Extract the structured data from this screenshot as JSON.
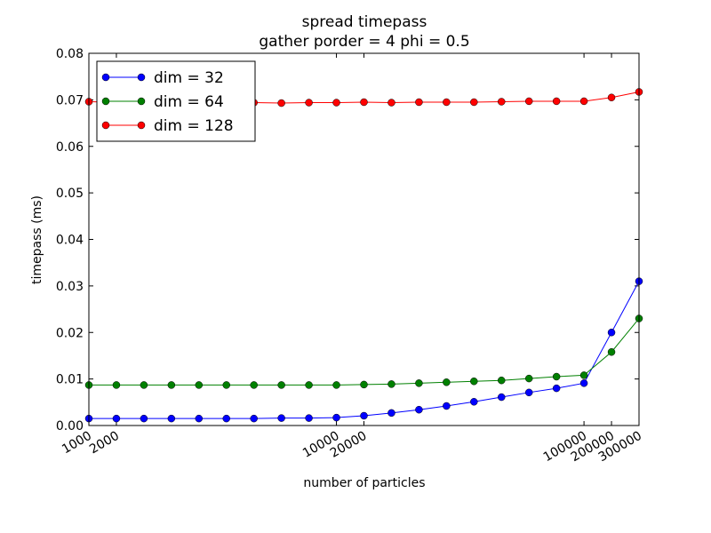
{
  "chart_data": {
    "type": "line",
    "title": "spread timepass",
    "subtitle": "gather porder = 4 phi = 0.5",
    "xlabel": "number of particles",
    "ylabel": "timepass (ms)",
    "categories": [
      "1000",
      "2000",
      null,
      null,
      null,
      null,
      null,
      null,
      null,
      "10000",
      "20000",
      null,
      null,
      null,
      null,
      null,
      null,
      null,
      "100000",
      "200000",
      "300000"
    ],
    "series": [
      {
        "name": "dim = 32",
        "color": "#0000ff",
        "values": [
          0.0015,
          0.0015,
          0.0015,
          0.0015,
          0.0015,
          0.0015,
          0.0015,
          0.0016,
          0.0016,
          0.0017,
          0.0021,
          0.0027,
          0.0034,
          0.0042,
          0.0051,
          0.0061,
          0.0071,
          0.008,
          0.0091,
          0.02,
          0.031
        ]
      },
      {
        "name": "dim = 64",
        "color": "#008000",
        "values": [
          0.0087,
          0.0087,
          0.0087,
          0.0087,
          0.0087,
          0.0087,
          0.0087,
          0.0087,
          0.0087,
          0.0087,
          0.0088,
          0.0089,
          0.0091,
          0.0093,
          0.0095,
          0.0097,
          0.0101,
          0.0105,
          0.0108,
          0.0158,
          0.023
        ]
      },
      {
        "name": "dim = 128",
        "color": "#ff0000",
        "values": [
          0.0696,
          0.0695,
          0.0694,
          0.0694,
          0.0694,
          0.0694,
          0.0694,
          0.0693,
          0.0694,
          0.0694,
          0.0695,
          0.0694,
          0.0695,
          0.0695,
          0.0695,
          0.0696,
          0.0697,
          0.0697,
          0.0697,
          0.0705,
          0.0717
        ]
      }
    ],
    "ylim": [
      0,
      0.08
    ],
    "yticks": [
      {
        "value": 0,
        "label": "0.00"
      },
      0.01,
      0.02,
      0.03,
      0.04,
      0.05,
      0.06,
      0.07,
      0.08
    ],
    "legend": "upper left"
  }
}
